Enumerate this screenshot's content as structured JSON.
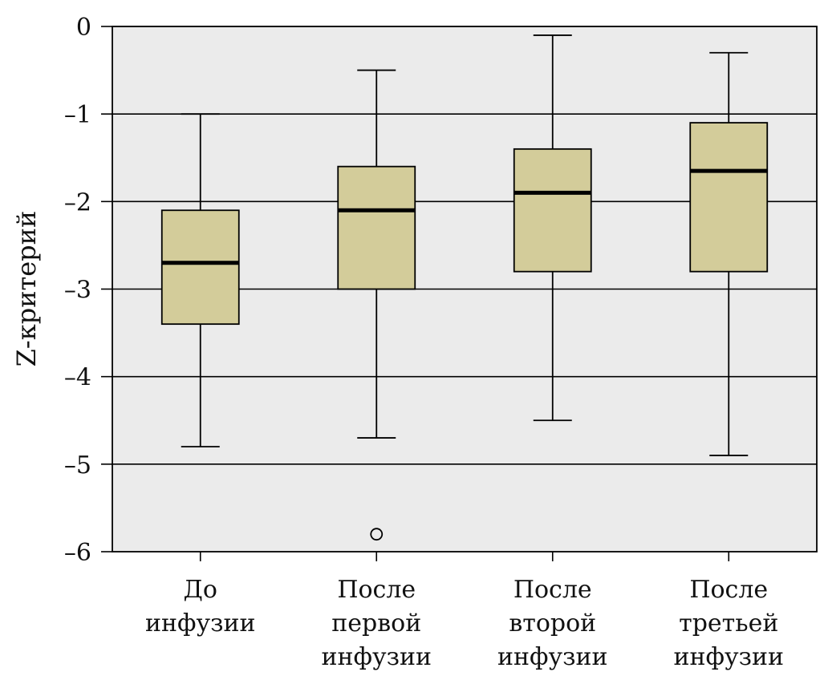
{
  "chart_data": {
    "type": "box",
    "title": "",
    "xlabel": "",
    "ylabel": "Z-критерий",
    "ylim": [
      -6,
      0
    ],
    "yticks": [
      0,
      -1,
      -2,
      -3,
      -4,
      -5,
      -6
    ],
    "ytick_labels": [
      "0",
      "–1",
      "–2",
      "–3",
      "–4",
      "–5",
      "–6"
    ],
    "grid": true,
    "legend": "none",
    "colors": {
      "box_fill": "#d3cc9a",
      "plot_bg": "#ebebeb",
      "median": "#000000"
    },
    "categories": [
      {
        "lines": [
          "До",
          "инфузии"
        ]
      },
      {
        "lines": [
          "После",
          "первой",
          "инфузии"
        ]
      },
      {
        "lines": [
          "После",
          "второй",
          "инфузии"
        ]
      },
      {
        "lines": [
          "После",
          "третьей",
          "инфузии"
        ]
      }
    ],
    "boxes": [
      {
        "whisker_low": -4.8,
        "q1": -3.4,
        "median": -2.7,
        "q3": -2.1,
        "whisker_high": -1.0,
        "outliers": []
      },
      {
        "whisker_low": -4.7,
        "q1": -3.0,
        "median": -2.1,
        "q3": -1.6,
        "whisker_high": -0.5,
        "outliers": [
          -5.8
        ]
      },
      {
        "whisker_low": -4.5,
        "q1": -2.8,
        "median": -1.9,
        "q3": -1.4,
        "whisker_high": -0.1,
        "outliers": []
      },
      {
        "whisker_low": -4.9,
        "q1": -2.8,
        "median": -1.65,
        "q3": -1.1,
        "whisker_high": -0.3,
        "outliers": []
      }
    ]
  }
}
